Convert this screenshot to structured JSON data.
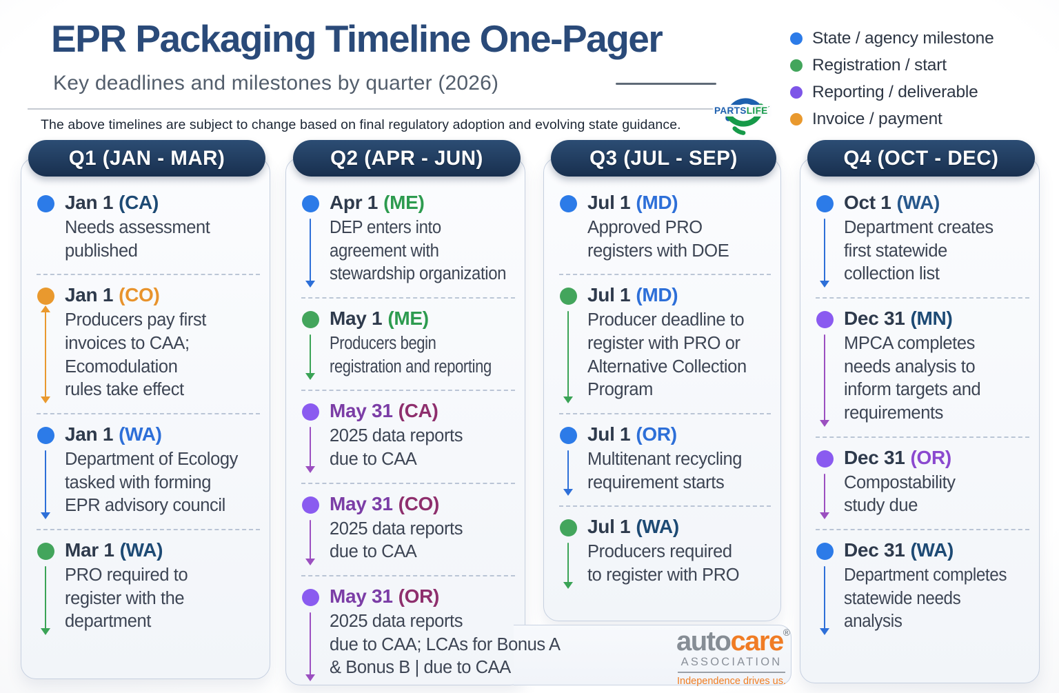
{
  "page": {
    "title": "EPR Packaging Timeline One-Pager",
    "subtitle": "Key deadlines and milestones by quarter (2026)",
    "disclaimer": "The above timelines are subject to change based on final regulatory adoption and evolving state guidance."
  },
  "legend": {
    "items": [
      {
        "label": "State / agency milestone",
        "color": "#2c7be8"
      },
      {
        "label": "Registration / start",
        "color": "#43a55c"
      },
      {
        "label": "Reporting / deliverable",
        "color": "#7d55e8"
      },
      {
        "label": "Invoice / payment",
        "color": "#e9992e"
      }
    ]
  },
  "palette": {
    "dot_blue": "#2c7be8",
    "dot_green": "#43a55c",
    "dot_purple": "#8a5bf0",
    "dot_orange": "#e9992e",
    "navy": "#1d4a74",
    "bright_blue": "#2d6fd8",
    "green": "#2d9b4f",
    "orange": "#e8932c",
    "purple_date": "#7b3da6",
    "plum": "#8e2f6d",
    "violet": "#8b49cf"
  },
  "columns": [
    {
      "header": "Q1 (JAN - MAR)",
      "items": [
        {
          "date": "Jan 1",
          "state": "(CA)",
          "state_color": "#1d4a74",
          "dot_color": "#2c7be8",
          "arrow": "none",
          "arrow_color": "#2d6fd8",
          "desc": "Needs assessment\npublished"
        },
        {
          "date": "Jan 1",
          "state": "(CO)",
          "state_color": "#e8932c",
          "dot_color": "#e9992e",
          "arrow": "double",
          "arrow_color": "#e9992e",
          "desc": "Producers pay first\ninvoices to CAA;\nEcomodulation\nrules take effect"
        },
        {
          "date": "Jan 1",
          "state": "(WA)",
          "state_color": "#2d6fd8",
          "dot_color": "#2c7be8",
          "arrow": "down",
          "arrow_color": "#2d6fd8",
          "desc": "Department of Ecology\ntasked with forming\nEPR advisory council"
        },
        {
          "date": "Mar 1",
          "state": "(WA)",
          "state_color": "#1d4a74",
          "dot_color": "#43a55c",
          "arrow": "down",
          "arrow_color": "#3aa356",
          "desc": "PRO required to\nregister with the\ndepartment"
        }
      ]
    },
    {
      "header": "Q2 (APR - JUN)",
      "items": [
        {
          "date": "Apr 1",
          "state": "(ME)",
          "state_color": "#2d9b4f",
          "dot_color": "#2c7be8",
          "arrow": "down",
          "arrow_color": "#2d6fd8",
          "fit": 0.94,
          "desc": "DEP enters into\nagreement with\nstewardship organization"
        },
        {
          "date": "May 1",
          "state": "(ME)",
          "state_color": "#2d9b4f",
          "dot_color": "#43a55c",
          "arrow": "down",
          "arrow_color": "#3aa356",
          "fit": 0.86,
          "desc": "Producers begin\nregistration and reporting"
        },
        {
          "date": "May 31",
          "state": "(CA)",
          "date_color": "#7b3da6",
          "state_color": "#8e2f6d",
          "dot_color": "#8a5bf0",
          "arrow": "down",
          "arrow_color": "#9b4fc0",
          "desc": "2025 data reports\ndue to CAA"
        },
        {
          "date": "May 31",
          "state": "(CO)",
          "date_color": "#7b3da6",
          "state_color": "#8e2f6d",
          "dot_color": "#8a5bf0",
          "arrow": "down",
          "arrow_color": "#9b4fc0",
          "desc": "2025 data reports\ndue to CAA"
        },
        {
          "date": "May 31",
          "state": "(OR)",
          "date_color": "#7b3da6",
          "state_color": "#8e2f6d",
          "dot_color": "#8a5bf0",
          "arrow": "down",
          "arrow_color": "#9b4fc0",
          "wide": true,
          "desc": "2025 data reports\ndue to CAA; LCAs for Bonus A\n& Bonus B | due to CAA"
        }
      ]
    },
    {
      "header": "Q3 (JUL - SEP)",
      "items": [
        {
          "date": "Jul 1",
          "state": "(MD)",
          "state_color": "#2d6fd8",
          "dot_color": "#2c7be8",
          "arrow": "none",
          "arrow_color": "#2d6fd8",
          "desc": "Approved PRO\nregisters with DOE"
        },
        {
          "date": "Jul 1",
          "state": "(MD)",
          "state_color": "#2d6fd8",
          "dot_color": "#43a55c",
          "arrow": "down",
          "arrow_color": "#3aa356",
          "desc": "Producer deadline to\nregister with PRO or\nAlternative Collection\nProgram"
        },
        {
          "date": "Jul 1",
          "state": "(OR)",
          "state_color": "#2d6fd8",
          "dot_color": "#2c7be8",
          "arrow": "down",
          "arrow_color": "#2d6fd8",
          "desc": "Multitenant recycling\nrequirement starts"
        },
        {
          "date": "Jul 1",
          "state": "(WA)",
          "state_color": "#1d4a74",
          "dot_color": "#43a55c",
          "arrow": "down",
          "arrow_color": "#3aa356",
          "desc": "Producers required\nto register with PRO"
        }
      ]
    },
    {
      "header": "Q4 (OCT - DEC)",
      "items": [
        {
          "date": "Oct 1",
          "state": "(WA)",
          "state_color": "#27588c",
          "dot_color": "#2c7be8",
          "arrow": "down",
          "arrow_color": "#2d6fd8",
          "desc": "Department creates\nfirst statewide\ncollection list"
        },
        {
          "date": "Dec 31",
          "state": "(MN)",
          "state_color": "#1d4a74",
          "dot_color": "#8a5bf0",
          "arrow": "down",
          "arrow_color": "#9b4fc0",
          "desc": "MPCA completes\nneeds analysis to\ninform targets and\nrequirements"
        },
        {
          "date": "Dec 31",
          "state": "(OR)",
          "state_color": "#8b49cf",
          "dot_color": "#8a5bf0",
          "arrow": "down",
          "arrow_color": "#9b4fc0",
          "desc": "Compostability\nstudy due"
        },
        {
          "date": "Dec 31",
          "state": "(WA)",
          "state_color": "#1d4a74",
          "dot_color": "#2c7be8",
          "arrow": "down",
          "arrow_color": "#2d6fd8",
          "fit": 0.95,
          "desc": "Department completes\nstatewide needs\nanalysis"
        }
      ]
    }
  ],
  "logos": {
    "partslife": {
      "text_primary": "PARTS",
      "text_secondary": "LIFE",
      "mark": "´"
    },
    "autocare": {
      "word_gray": "auto",
      "word_orange": "care",
      "reg": "®",
      "subtitle": "ASSOCIATION",
      "tagline": "Independence drives us."
    }
  }
}
